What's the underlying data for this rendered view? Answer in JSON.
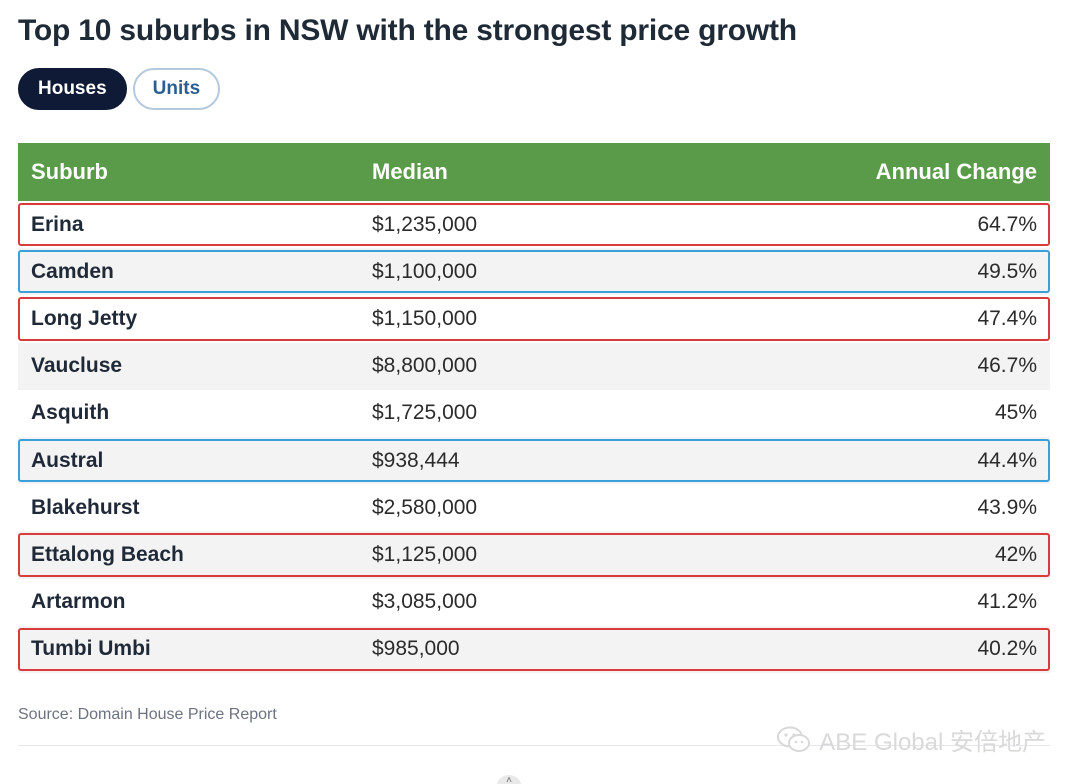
{
  "title": "Top 10 suburbs in NSW with the strongest price growth",
  "tabs": [
    {
      "label": "Houses",
      "active": true
    },
    {
      "label": "Units",
      "active": false
    }
  ],
  "table": {
    "headers": {
      "suburb": "Suburb",
      "median": "Median",
      "change": "Annual Change"
    },
    "rows": [
      {
        "suburb": "Erina",
        "median": "$1,235,000",
        "change": "64.7%",
        "highlight": "red"
      },
      {
        "suburb": "Camden",
        "median": "$1,100,000",
        "change": "49.5%",
        "highlight": "blue"
      },
      {
        "suburb": "Long Jetty",
        "median": "$1,150,000",
        "change": "47.4%",
        "highlight": "red"
      },
      {
        "suburb": "Vaucluse",
        "median": "$8,800,000",
        "change": "46.7%",
        "highlight": "none"
      },
      {
        "suburb": "Asquith",
        "median": "$1,725,000",
        "change": "45%",
        "highlight": "none"
      },
      {
        "suburb": "Austral",
        "median": "$938,444",
        "change": "44.4%",
        "highlight": "blue"
      },
      {
        "suburb": "Blakehurst",
        "median": "$2,580,000",
        "change": "43.9%",
        "highlight": "none"
      },
      {
        "suburb": "Ettalong Beach",
        "median": "$1,125,000",
        "change": "42%",
        "highlight": "red"
      },
      {
        "suburb": "Artarmon",
        "median": "$3,085,000",
        "change": "41.2%",
        "highlight": "none"
      },
      {
        "suburb": "Tumbi Umbi",
        "median": "$985,000",
        "change": "40.2%",
        "highlight": "red"
      }
    ]
  },
  "source": "Source: Domain House Price Report",
  "watermark": "ABE Global 安倍地产",
  "colors": {
    "header_green": "#5a9b49",
    "tab_active": "#0e1a36",
    "highlight_red": "#d93a3a",
    "highlight_blue": "#3aa0da"
  },
  "icons": {
    "watermark": "wechat-icon",
    "scroll": "chevron-up-icon"
  }
}
